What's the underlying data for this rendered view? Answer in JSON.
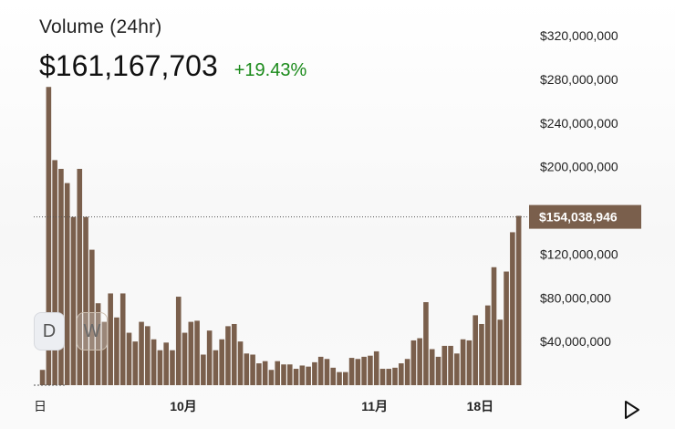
{
  "header": {
    "title": "Volume (24hr)",
    "price": "$161,167,703",
    "change": "+19.43%"
  },
  "controls": {
    "day_label": "D",
    "week_label": "W"
  },
  "colors": {
    "bar": "#7a5f4c",
    "change_positive": "#1a8a1a",
    "marker_bg": "#7a5f4c"
  },
  "chart_data": {
    "type": "bar",
    "ylim": [
      0,
      340000000
    ],
    "yticks": [
      40000000,
      80000000,
      120000000,
      200000000,
      240000000,
      280000000,
      320000000
    ],
    "ytick_labels": [
      "$40,000,000",
      "$80,000,000",
      "$120,000,000",
      "$200,000,000",
      "$240,000,000",
      "$280,000,000",
      "$320,000,000"
    ],
    "current_value": 154038946,
    "current_label": "$154,038,946",
    "xtick_labels": [
      {
        "index": 0,
        "label": "日"
      },
      {
        "index": 22,
        "label": "10月"
      },
      {
        "index": 53,
        "label": "11月"
      },
      {
        "index": 70,
        "label": "18日"
      }
    ],
    "values": [
      0,
      14000000,
      273000000,
      206000000,
      198000000,
      185000000,
      154000000,
      198000000,
      154000000,
      124000000,
      75000000,
      58000000,
      84000000,
      62000000,
      84000000,
      48000000,
      40000000,
      58000000,
      54000000,
      42000000,
      32000000,
      39000000,
      32000000,
      81000000,
      48000000,
      58000000,
      59000000,
      28000000,
      50000000,
      32000000,
      42000000,
      54000000,
      56000000,
      40000000,
      29000000,
      28000000,
      20000000,
      22000000,
      14000000,
      22000000,
      19000000,
      19000000,
      15000000,
      18000000,
      17000000,
      21000000,
      26000000,
      24000000,
      16000000,
      12000000,
      12000000,
      25000000,
      24000000,
      26000000,
      27000000,
      31000000,
      15000000,
      15000000,
      16000000,
      20000000,
      24000000,
      41000000,
      43000000,
      76000000,
      33000000,
      26000000,
      36000000,
      36000000,
      29000000,
      42000000,
      41000000,
      64000000,
      56000000,
      73000000,
      108000000,
      60000000,
      104000000,
      140000000,
      155000000
    ]
  }
}
